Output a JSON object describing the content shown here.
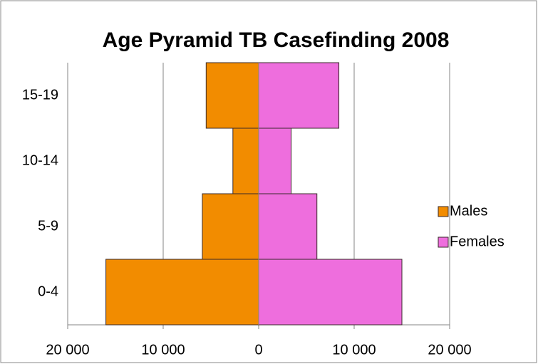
{
  "chart_data": {
    "type": "bar",
    "orientation": "horizontal",
    "stacked": true,
    "title": "Age Pyramid TB Casefinding 2008",
    "categories": [
      "0-4",
      "5-9",
      "10-14",
      "15-19"
    ],
    "series": [
      {
        "name": "Males",
        "color": "#f28c00",
        "values": [
          -16000,
          -5900,
          -2700,
          -5500
        ]
      },
      {
        "name": "Females",
        "color": "#ee6edd",
        "values": [
          15000,
          6100,
          3400,
          8400
        ]
      }
    ],
    "xlim": [
      -20000,
      20000
    ],
    "xticks": [
      {
        "value": -20000,
        "label": "20 000"
      },
      {
        "value": -10000,
        "label": "10 000"
      },
      0,
      {
        "value": 10000,
        "label": "10 000"
      },
      {
        "value": 20000,
        "label": "20 000"
      }
    ],
    "grid": true,
    "legend": "right"
  }
}
